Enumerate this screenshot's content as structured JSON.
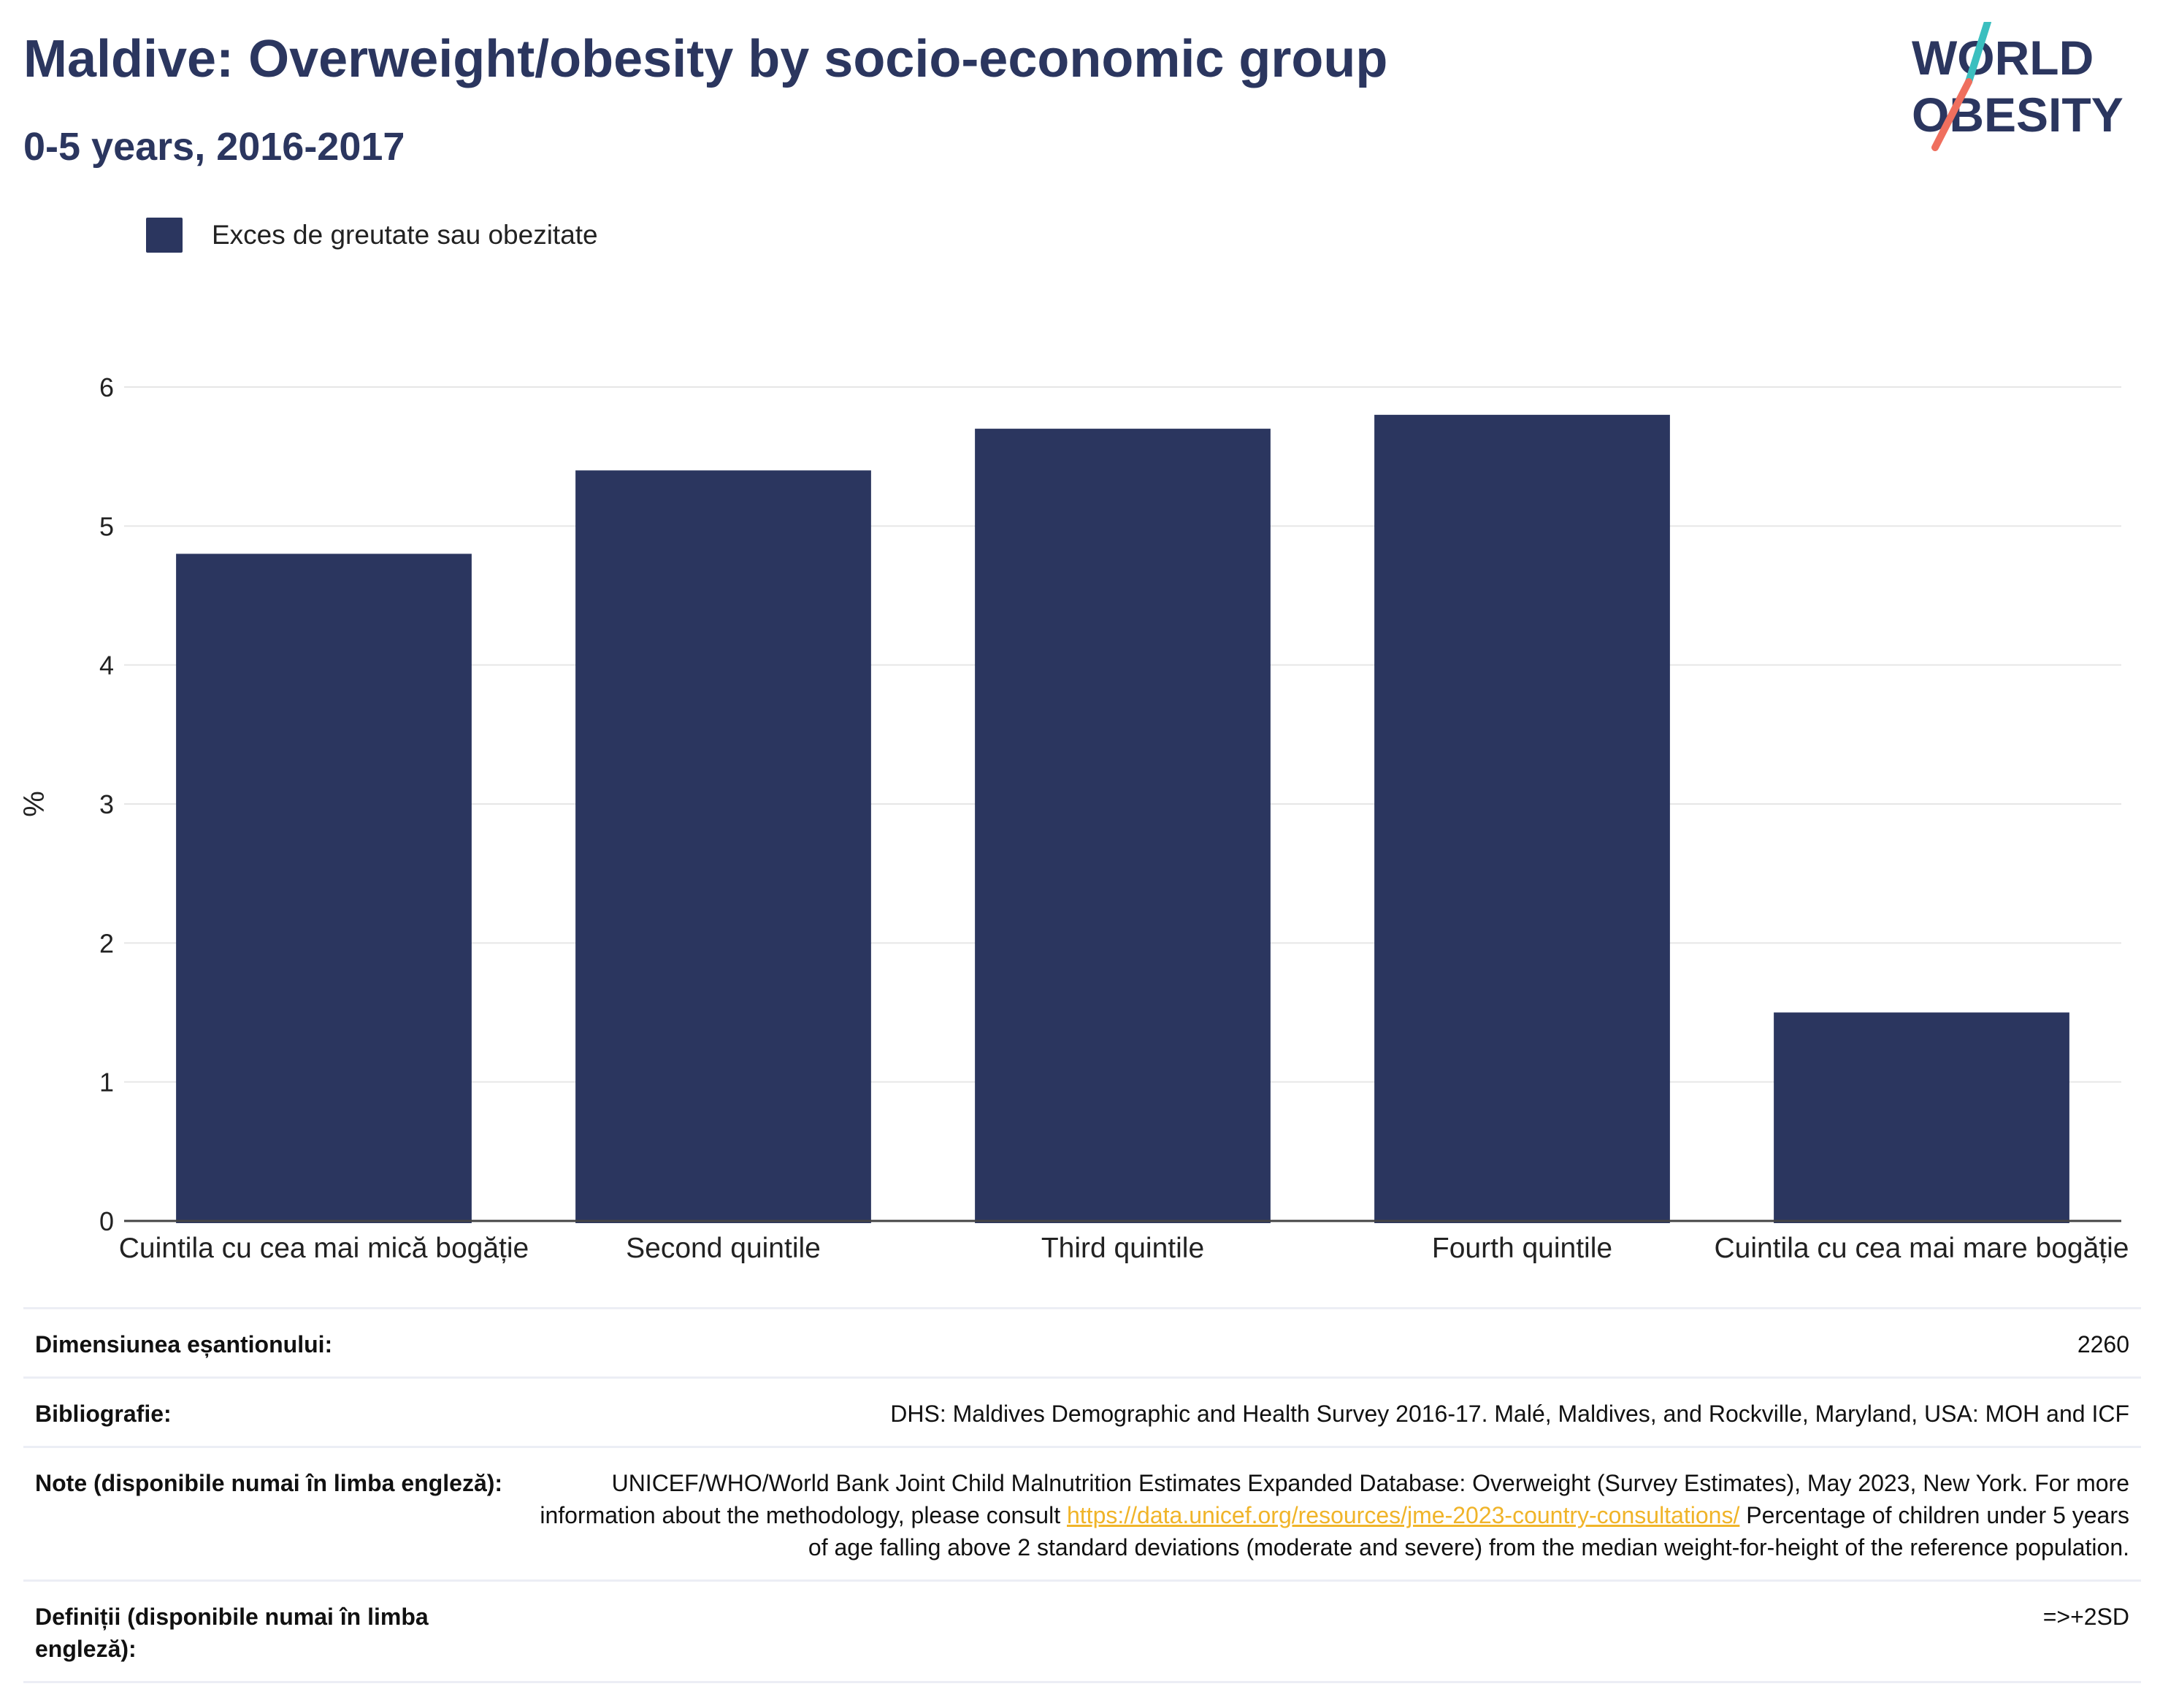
{
  "header": {
    "title": "Maldive: Overweight/obesity by socio-economic group",
    "subtitle": "0-5 years, 2016-2017"
  },
  "logo": {
    "line1": "WORLD",
    "line2": "OBESITY",
    "colors": {
      "text": "#2b365f",
      "slash_top": "#3bbfbf",
      "slash_bottom": "#ef6f5e"
    }
  },
  "colors": {
    "bar": "#2b365f",
    "grid": "#e6e6e6",
    "axis": "#444444"
  },
  "chart_data": {
    "type": "bar",
    "title": "Maldive: Overweight/obesity by socio-economic group",
    "subtitle": "0-5 years, 2016-2017",
    "categories": [
      "Cuintila cu cea mai mică bogăție",
      "Second quintile",
      "Third quintile",
      "Fourth quintile",
      "Cuintila cu cea mai mare bogăție"
    ],
    "series": [
      {
        "name": "Exces de greutate sau obezitate",
        "values": [
          4.8,
          5.4,
          5.7,
          5.8,
          1.5
        ]
      }
    ],
    "xlabel": "",
    "ylabel": "%",
    "ylim": [
      0,
      6
    ],
    "yticks": [
      0,
      1,
      2,
      3,
      4,
      5,
      6
    ],
    "grid": true,
    "legend": "top-left"
  },
  "info": {
    "sample_size": {
      "label": "Dimensiunea eșantionului:",
      "value": "2260"
    },
    "bibliography": {
      "label": "Bibliografie:",
      "value": "DHS: Maldives Demographic and Health Survey 2016-17. Malé, Maldives, and Rockville, Maryland, USA: MOH and ICF"
    },
    "notes": {
      "label": "Note (disponibile numai în limba engleză):",
      "line1": "UNICEF/WHO/World Bank Joint Child Malnutrition Estimates Expanded Database: Overweight (Survey Estimates), May 2023, New",
      "line2_text": "York. For more information about the methodology, please consult",
      "link": "https://data.unicef.org/resources/jme-2023-country-consultations/",
      "line3": "Percentage of children under 5 years of age falling above 2 standard deviations (moderate and severe) from the median weight-for-height of the reference population."
    },
    "definitions": {
      "label": "Definiții (disponibile numai în limba engleză):",
      "value": "=>+2SD"
    }
  }
}
